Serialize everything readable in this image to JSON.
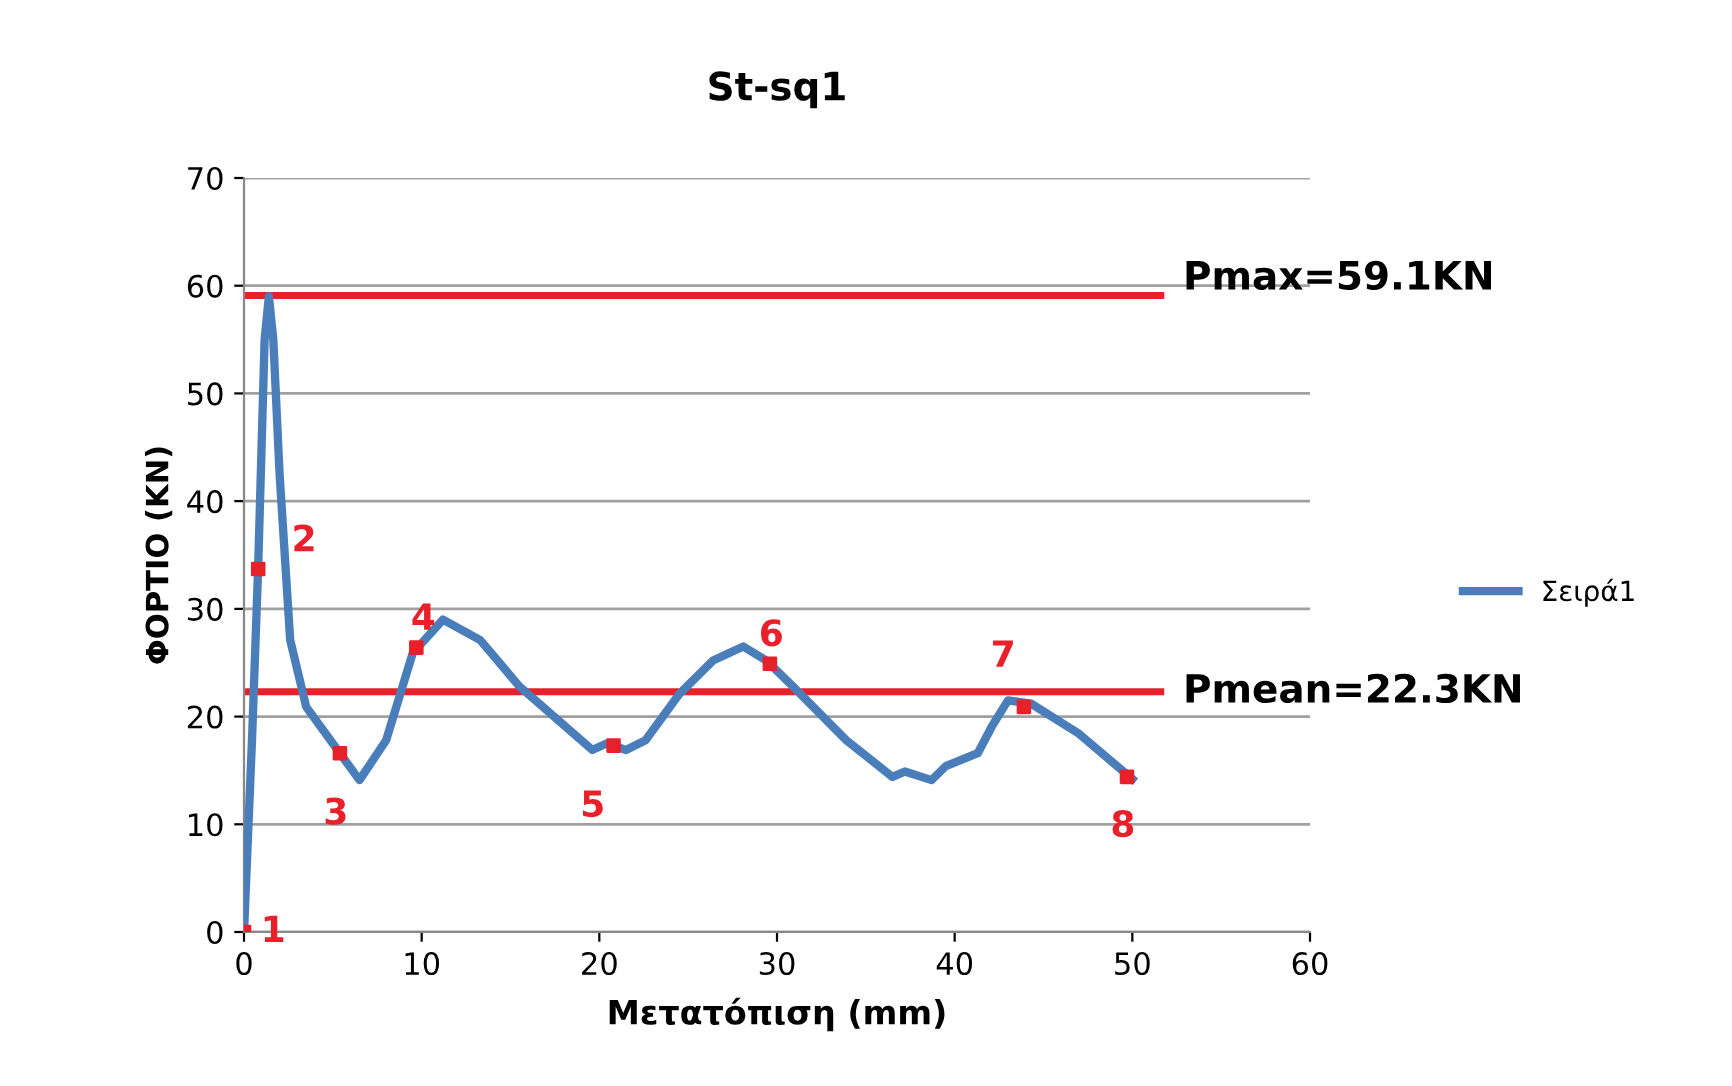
{
  "chart_data": {
    "type": "line",
    "title": "St-sq1",
    "xlabel": "Μετατόπιση (mm)",
    "ylabel": "ΦΟΡΤΙΟ (KN)",
    "xlim": [
      0,
      60
    ],
    "xticks": [
      0,
      10,
      20,
      30,
      40,
      50,
      60
    ],
    "ylim": [
      0,
      70
    ],
    "yticks": [
      0,
      10,
      20,
      30,
      40,
      50,
      60,
      70
    ],
    "grid": "y",
    "legend": "right",
    "series": [
      {
        "name": "Σειρά1",
        "color": "#4a7ebb",
        "x": [
          0,
          0.45,
          0.8,
          1.16,
          1.4,
          1.65,
          2.0,
          2.6,
          3.5,
          5.4,
          6.5,
          8.0,
          9.5,
          11.2,
          13.3,
          15.5,
          19.6,
          20.4,
          21.5,
          22.6,
          24.5,
          26.4,
          28.1,
          29.4,
          30.9,
          33.9,
          36.5,
          37.2,
          38.7,
          39.5,
          41.3,
          42.1,
          43.0,
          44.3,
          47.0,
          50.0
        ],
        "values": [
          0,
          17.8,
          34,
          55,
          59,
          55,
          42.6,
          27.1,
          20.9,
          16.6,
          14.1,
          17.8,
          25.9,
          29.0,
          27.1,
          22.8,
          16.9,
          17.5,
          16.9,
          17.8,
          22.1,
          25.2,
          26.5,
          25.2,
          22.8,
          17.8,
          14.4,
          14.9,
          14.1,
          15.4,
          16.6,
          19.1,
          21.5,
          21.2,
          18.4,
          14.2
        ]
      },
      {
        "type": "scatter",
        "color": "#e8202a",
        "marker": "square",
        "x": [
          0,
          0.8,
          5.4,
          9.7,
          20.8,
          29.6,
          43.9,
          49.7
        ],
        "values": [
          0,
          33.7,
          16.6,
          26.4,
          17.3,
          24.9,
          20.9,
          14.4
        ]
      }
    ],
    "ref_lines": [
      {
        "axis": "y",
        "value": 59.1,
        "label": "Pmax=59.1KN",
        "color": "#e8202a"
      },
      {
        "axis": "y",
        "value": 22.3,
        "label": "Pmean=22.3KN",
        "color": "#e8202a"
      }
    ],
    "annotations": [
      {
        "text": "1",
        "x": 0,
        "y": 0
      },
      {
        "text": "2",
        "x": 0.8,
        "y": 33.7
      },
      {
        "text": "3",
        "x": 5.4,
        "y": 16.6
      },
      {
        "text": "4",
        "x": 9.7,
        "y": 26.4
      },
      {
        "text": "5",
        "x": 20.8,
        "y": 17.3
      },
      {
        "text": "6",
        "x": 29.6,
        "y": 24.9
      },
      {
        "text": "7",
        "x": 43.9,
        "y": 20.9
      },
      {
        "text": "8",
        "x": 49.7,
        "y": 14.4
      }
    ]
  }
}
